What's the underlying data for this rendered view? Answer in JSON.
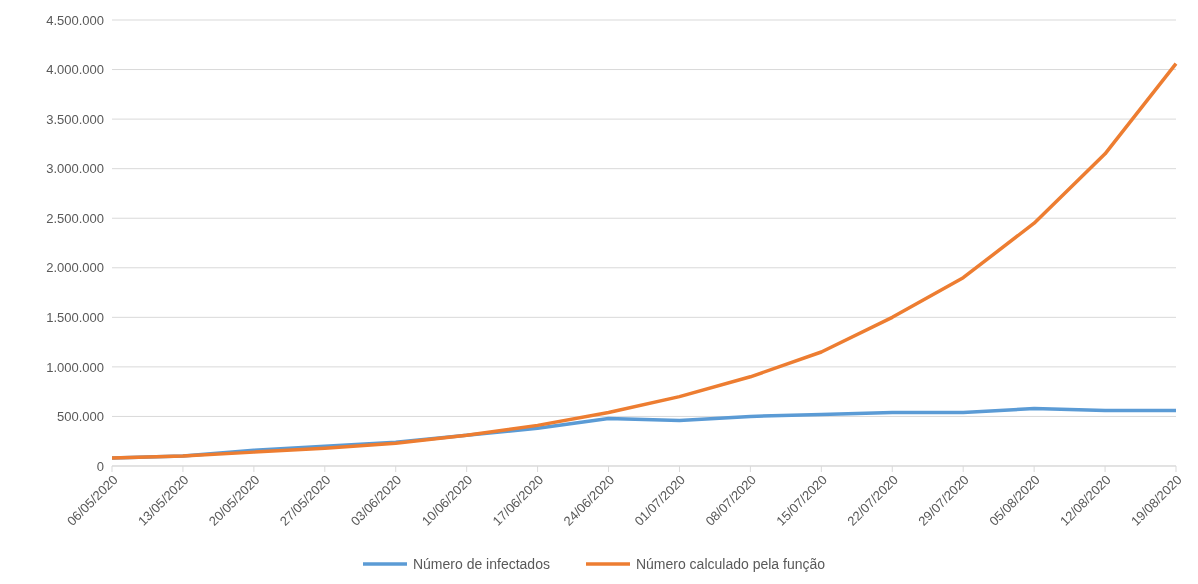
{
  "chart_data": {
    "type": "line",
    "categories": [
      "06/05/2020",
      "13/05/2020",
      "20/05/2020",
      "27/05/2020",
      "03/06/2020",
      "10/06/2020",
      "17/06/2020",
      "24/06/2020",
      "01/07/2020",
      "08/07/2020",
      "15/07/2020",
      "22/07/2020",
      "29/07/2020",
      "05/08/2020",
      "12/08/2020",
      "19/08/2020"
    ],
    "series": [
      {
        "name": "Número de infectados",
        "color": "#5b9bd5",
        "values": [
          80000,
          100000,
          160000,
          200000,
          240000,
          310000,
          380000,
          480000,
          460000,
          500000,
          520000,
          540000,
          540000,
          580000,
          560000,
          560000
        ]
      },
      {
        "name": "Número calculado pela função",
        "color": "#ed7d31",
        "values": [
          80000,
          100000,
          140000,
          180000,
          230000,
          310000,
          410000,
          540000,
          700000,
          900000,
          1150000,
          1500000,
          1900000,
          2450000,
          3150000,
          4060000
        ]
      }
    ],
    "ylim": [
      0,
      4500000
    ],
    "yticks": [
      0,
      {
        "value": 500000,
        "label": "500.000"
      },
      {
        "value": 1000000,
        "label": "1.000.000"
      },
      {
        "value": 1500000,
        "label": "1.500.000"
      },
      {
        "value": 2000000,
        "label": "2.000.000"
      },
      {
        "value": 2500000,
        "label": "2.500.000"
      },
      {
        "value": 3000000,
        "label": "3.000.000"
      },
      {
        "value": 3500000,
        "label": "3.500.000"
      },
      {
        "value": 4000000,
        "label": "4.000.000"
      },
      {
        "value": 4500000,
        "label": "4.500.000"
      }
    ],
    "grid": "y",
    "legend": "bottom",
    "marker": "none",
    "line_style": "solid"
  }
}
